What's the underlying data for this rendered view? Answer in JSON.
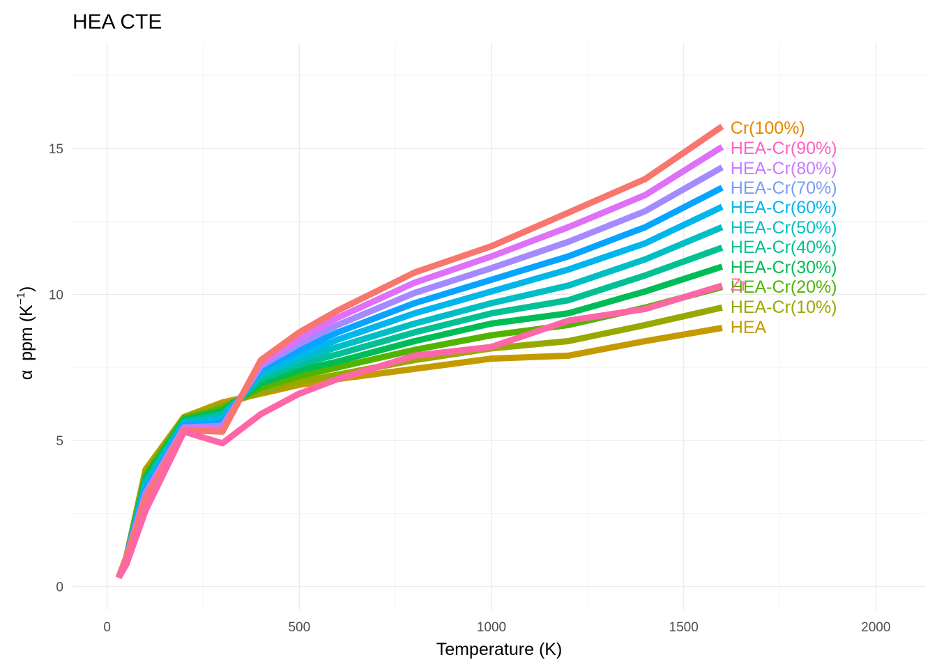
{
  "chart_data": {
    "type": "line",
    "title": "HEA CTE",
    "xlabel": "Temperature (K)",
    "ylabel_greek": "α",
    "ylabel_text": "ppm (K",
    "ylabel_sup": "−1",
    "ylabel_close": ")",
    "xlim": [
      -90,
      2130
    ],
    "ylim": [
      -0.8,
      18.6
    ],
    "xticks": [
      0,
      500,
      1000,
      1500,
      2000
    ],
    "xtick_labels": [
      "0",
      "500",
      "1000",
      "1500",
      "2000"
    ],
    "yticks": [
      0,
      5,
      10,
      15
    ],
    "ytick_labels": [
      "0",
      "5",
      "10",
      "15"
    ],
    "grid": true,
    "legend": "direct labels at line ends",
    "x": [
      30,
      50,
      100,
      200,
      300,
      400,
      500,
      600,
      800,
      1000,
      1200,
      1400,
      1600
    ],
    "series": [
      {
        "name": "HEA",
        "color": "#C49A00",
        "values": [
          0.3,
          1.0,
          4.0,
          5.8,
          6.3,
          6.6,
          6.9,
          7.1,
          7.45,
          7.8,
          7.9,
          8.4,
          8.85
        ]
      },
      {
        "name": "HEA-Cr(10%)",
        "color": "#99A800",
        "values": [
          0.3,
          1.0,
          3.9,
          5.8,
          6.2,
          6.65,
          7.0,
          7.25,
          7.75,
          8.15,
          8.4,
          8.95,
          9.55
        ]
      },
      {
        "name": "HEA-Cr(20%)",
        "color": "#53B400",
        "values": [
          0.3,
          1.0,
          3.8,
          5.75,
          6.1,
          6.8,
          7.2,
          7.5,
          8.1,
          8.6,
          8.95,
          9.55,
          10.25
        ]
      },
      {
        "name": "HEA-Cr(30%)",
        "color": "#00BC56",
        "values": [
          0.3,
          1.0,
          3.7,
          5.7,
          6.0,
          6.95,
          7.4,
          7.7,
          8.4,
          9.0,
          9.35,
          10.1,
          10.95
        ]
      },
      {
        "name": "HEA-Cr(40%)",
        "color": "#00C094",
        "values": [
          0.3,
          1.0,
          3.6,
          5.65,
          5.9,
          7.1,
          7.6,
          7.95,
          8.7,
          9.35,
          9.8,
          10.65,
          11.6
        ]
      },
      {
        "name": "HEA-Cr(50%)",
        "color": "#00BFC4",
        "values": [
          0.3,
          1.0,
          3.5,
          5.6,
          5.8,
          7.25,
          7.75,
          8.2,
          9.0,
          9.7,
          10.3,
          11.2,
          12.3
        ]
      },
      {
        "name": "HEA-Cr(60%)",
        "color": "#00B6EB",
        "values": [
          0.3,
          1.0,
          3.4,
          5.55,
          5.7,
          7.35,
          7.9,
          8.45,
          9.35,
          10.1,
          10.85,
          11.75,
          13.0
        ]
      },
      {
        "name": "HEA-Cr(70%)",
        "color": "#06A4FF",
        "values": [
          0.3,
          1.0,
          3.3,
          5.5,
          5.6,
          7.45,
          8.1,
          8.7,
          9.7,
          10.5,
          11.3,
          12.3,
          13.65
        ]
      },
      {
        "name": "HEA-Cr(80%)",
        "color": "#A58AFF",
        "values": [
          0.3,
          1.0,
          3.2,
          5.45,
          5.5,
          7.55,
          8.3,
          8.95,
          10.05,
          10.9,
          11.8,
          12.85,
          14.35
        ]
      },
      {
        "name": "HEA-Cr(90%)",
        "color": "#DF70F8",
        "values": [
          0.3,
          1.0,
          3.1,
          5.4,
          5.4,
          7.65,
          8.5,
          9.2,
          10.4,
          11.3,
          12.3,
          13.4,
          15.05
        ]
      },
      {
        "name": "Cr(100%)",
        "color": "#FB61D7",
        "values": [
          0.3,
          1.0,
          3.0,
          5.35,
          5.3,
          7.75,
          8.7,
          9.45,
          10.75,
          11.65,
          12.8,
          13.95,
          15.75
        ]
      },
      {
        "name": "Zr",
        "color": "#FF66A8",
        "values": [
          0.3,
          0.75,
          2.6,
          5.3,
          4.9,
          5.9,
          6.6,
          7.1,
          7.9,
          8.2,
          9.1,
          9.5,
          10.3
        ]
      }
    ],
    "label_colors": {
      "Cr(100%)": "#E58700",
      "HEA": "#C49A00",
      "HEA-Cr(10%)": "#99A800",
      "HEA-Cr(20%)": "#53B400",
      "HEA-Cr(30%)": "#00BC56",
      "HEA-Cr(40%)": "#00C094",
      "HEA-Cr(50%)": "#00BFC4",
      "HEA-Cr(60%)": "#00B6EB",
      "HEA-Cr(70%)": "#7B9BF5",
      "HEA-Cr(80%)": "#C77CFF",
      "HEA-Cr(90%)": "#FF61C3",
      "Zr": "#FF66A8"
    },
    "cr_line_color": "#F8766D"
  }
}
